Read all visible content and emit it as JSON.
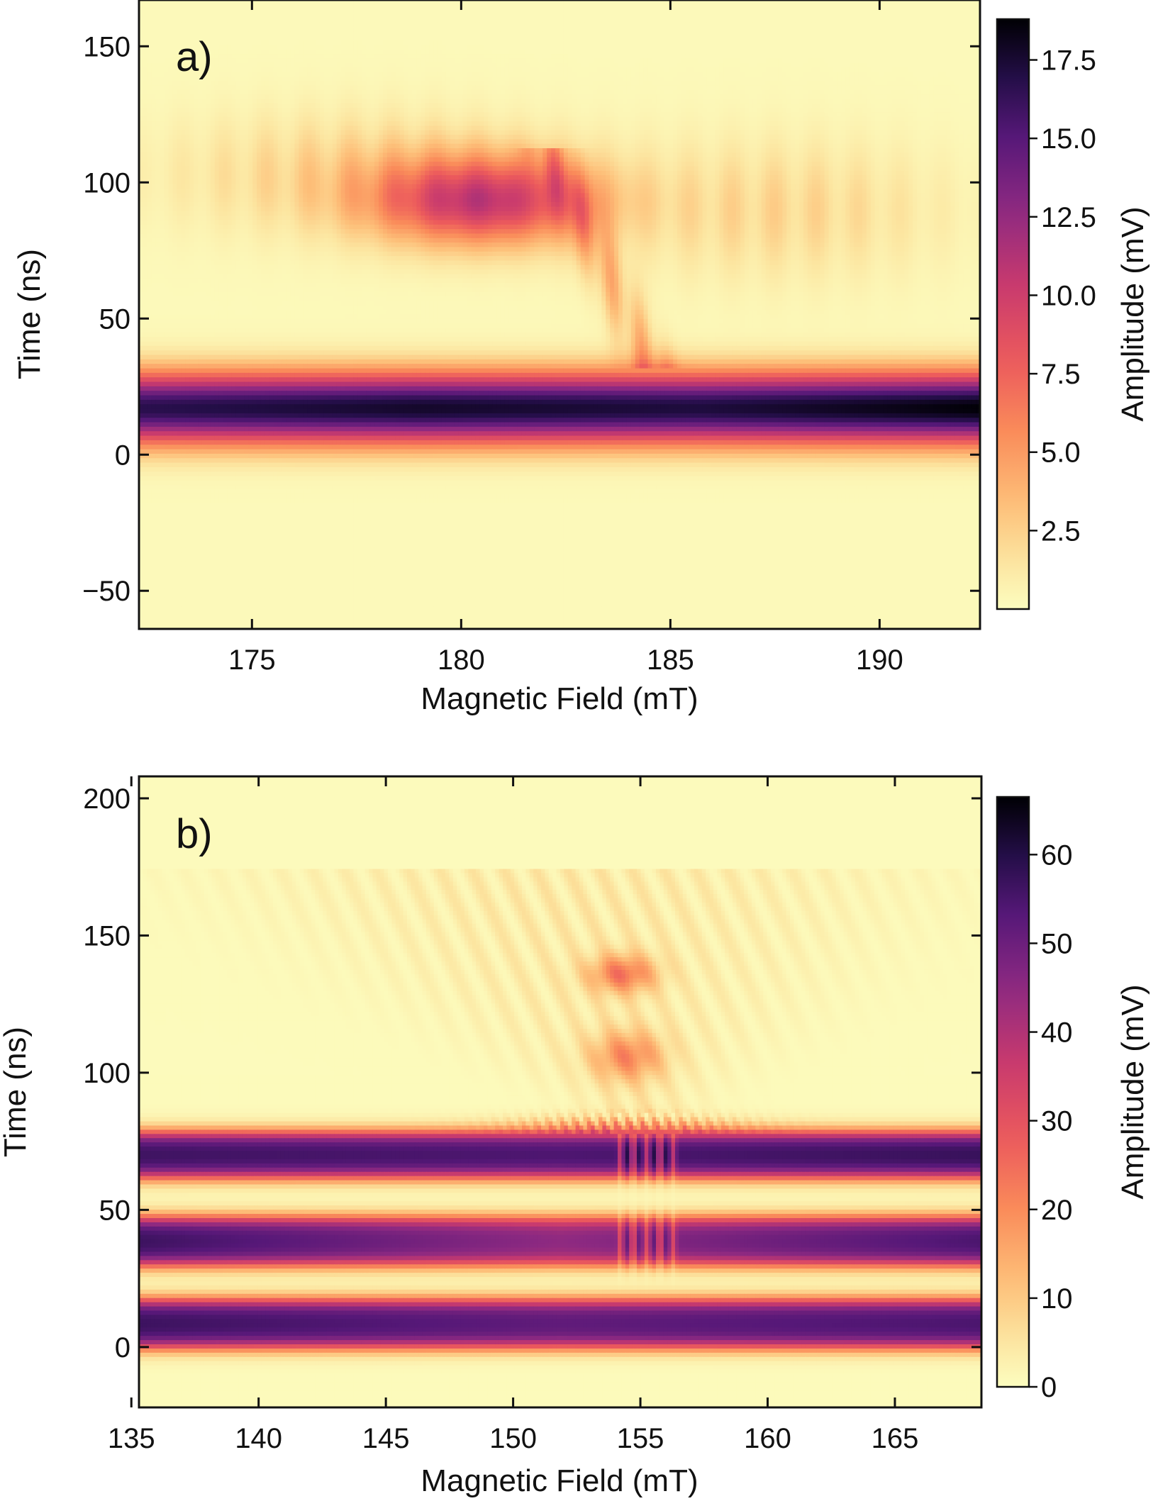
{
  "figure": {
    "colormap": "magma_r",
    "background": "#ffffff"
  },
  "chart_data": [
    {
      "type": "heatmap",
      "panel_label": "a)",
      "xlabel": "Magnetic Field (mT)",
      "ylabel": "Time (ns)",
      "colorbar_label": "Amplitude (mV)",
      "xlim": [
        172.3,
        192.4
      ],
      "ylim": [
        -64,
        167
      ],
      "xticks": [
        175,
        180,
        185,
        190
      ],
      "xtick_labels": [
        "175",
        "180",
        "185",
        "190"
      ],
      "yticks": [
        -50,
        0,
        50,
        100,
        150
      ],
      "ytick_labels": [
        "−50",
        "0",
        "50",
        "100",
        "150"
      ],
      "clim": [
        0,
        18.8
      ],
      "cticks": [
        2.5,
        5.0,
        7.5,
        10.0,
        12.5,
        15.0,
        17.5
      ],
      "ctick_labels": [
        "2.5",
        "5.0",
        "7.5",
        "10.0",
        "12.5",
        "15.0",
        "17.5"
      ],
      "features": [
        {
          "kind": "band",
          "x_range": [
            172.3,
            192.4
          ],
          "t_center": 17,
          "t_width": 13,
          "peak": [
            16.5,
            17.5,
            17.0,
            18.5
          ]
        },
        {
          "kind": "blob",
          "x_center": 180.5,
          "x_width": 2.6,
          "t_center": 93,
          "t_width": 16,
          "peak": 9.5
        },
        {
          "kind": "halo",
          "x_center": 177.5,
          "x_width": 4.5,
          "t_center": 103,
          "t_width": 22,
          "peak": 2.8
        },
        {
          "kind": "halo",
          "x_center": 187.5,
          "x_width": 4.0,
          "t_center": 90,
          "t_width": 25,
          "peak": 2.5
        },
        {
          "kind": "streak",
          "x_from": 182.3,
          "x_to": 184.3,
          "t_from": 105,
          "t_to": 40,
          "peak": 4.0
        }
      ]
    },
    {
      "type": "heatmap",
      "panel_label": "b)",
      "xlabel": "Magnetic Field (mT)",
      "ylabel": "Time (ns)",
      "colorbar_label": "Amplitude (mV)",
      "xlim": [
        135.3,
        168.4
      ],
      "ylim": [
        -22,
        208
      ],
      "xticks": [
        135,
        140,
        145,
        150,
        155,
        160,
        165
      ],
      "xtick_labels": [
        "135",
        "140",
        "145",
        "150",
        "155",
        "160",
        "165"
      ],
      "yticks": [
        0,
        50,
        100,
        150,
        200
      ],
      "ytick_labels": [
        "0",
        "50",
        "100",
        "150",
        "200"
      ],
      "clim": [
        0,
        66.5
      ],
      "cticks": [
        0,
        10,
        20,
        30,
        40,
        50,
        60
      ],
      "ctick_labels": [
        "0",
        "10",
        "20",
        "30",
        "40",
        "50",
        "60"
      ],
      "features": [
        {
          "kind": "pulse",
          "t_range": [
            0,
            17
          ],
          "peak": [
            57,
            52,
            55
          ]
        },
        {
          "kind": "pulse",
          "t_range": [
            30,
            47
          ],
          "peak": [
            57,
            45,
            55
          ]
        },
        {
          "kind": "pulse",
          "t_range": [
            62,
            78
          ],
          "peak": [
            57,
            55,
            58
          ]
        },
        {
          "kind": "blob",
          "x_center": 154.3,
          "x_width": 1.3,
          "t_center": 136,
          "t_width": 7,
          "peak": 20
        },
        {
          "kind": "blob",
          "x_center": 154.5,
          "x_width": 1.4,
          "t_center": 106,
          "t_width": 9,
          "peak": 17
        },
        {
          "kind": "fan",
          "x_center": 155,
          "t_top": 175,
          "t_bottom": 85,
          "peak": 6
        }
      ]
    }
  ]
}
